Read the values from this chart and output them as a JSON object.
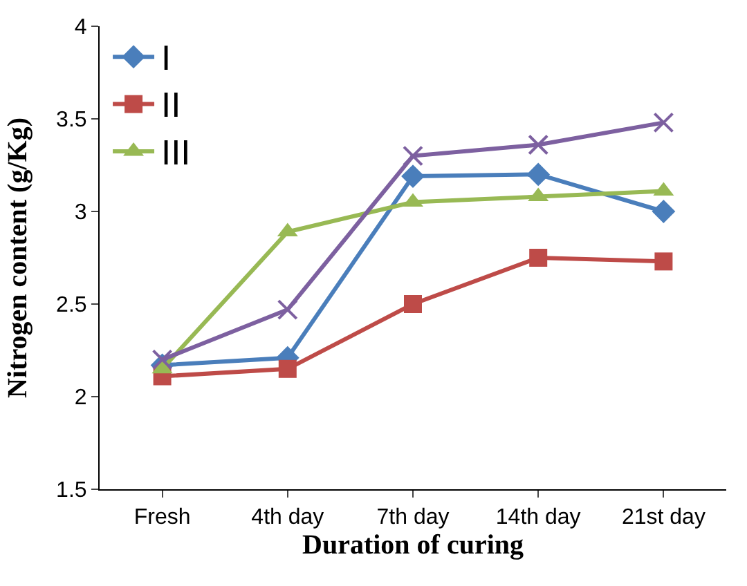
{
  "chart_data": {
    "type": "line",
    "xlabel": "Duration of curing",
    "ylabel": "Nitrogen content (g/Kg)",
    "categories": [
      "Fresh",
      "4th day",
      "7th day",
      "14th day",
      "21st day"
    ],
    "series": [
      {
        "name": "I",
        "color": "#4a7ebb",
        "marker": "diamond",
        "values": [
          2.17,
          2.21,
          3.19,
          3.2,
          3.0
        ]
      },
      {
        "name": "II",
        "color": "#be4b48",
        "marker": "square",
        "values": [
          2.11,
          2.15,
          2.5,
          2.75,
          2.73
        ]
      },
      {
        "name": "III",
        "color": "#98b954",
        "marker": "triangle",
        "values": [
          2.15,
          2.89,
          3.05,
          3.08,
          3.11
        ]
      },
      {
        "color": "#7d60a0",
        "marker": "cross",
        "values": [
          2.2,
          2.47,
          3.3,
          3.36,
          3.48
        ]
      }
    ],
    "ylim": [
      1.5,
      4
    ],
    "yticks": [
      1.5,
      2,
      2.5,
      3,
      3.5,
      4
    ],
    "legend": "top left"
  }
}
